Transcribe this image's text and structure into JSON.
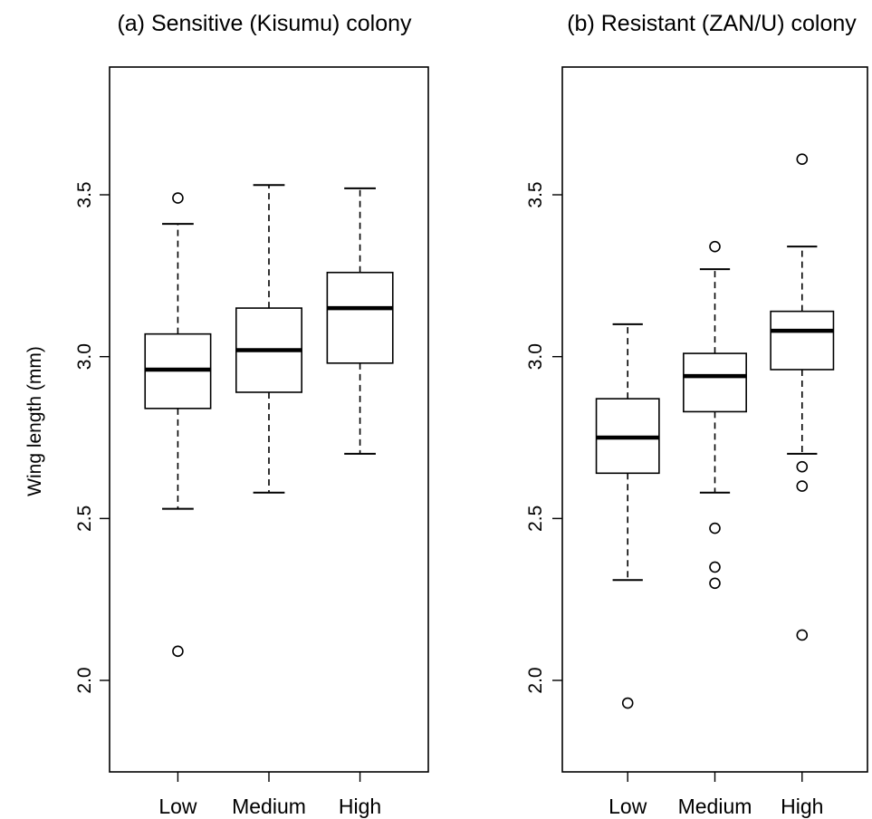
{
  "y_axis_label": "Wing length (mm)",
  "chart_data": [
    {
      "type": "boxplot",
      "title": "(a) Sensitive (Kisumu) colony",
      "ylabel": "Wing length (mm)",
      "xlabel": "",
      "ylim": [
        1.7,
        3.85
      ],
      "yticks": [
        "2.0",
        "2.5",
        "3.0",
        "3.5"
      ],
      "categories": [
        "Low",
        "Medium",
        "High"
      ],
      "boxes": [
        {
          "category": "Low",
          "whisker_low": 2.53,
          "q1": 2.84,
          "median": 2.96,
          "q3": 3.07,
          "whisker_high": 3.41,
          "outliers": [
            3.49,
            2.09
          ]
        },
        {
          "category": "Medium",
          "whisker_low": 2.58,
          "q1": 2.89,
          "median": 3.02,
          "q3": 3.15,
          "whisker_high": 3.53,
          "outliers": []
        },
        {
          "category": "High",
          "whisker_low": 2.7,
          "q1": 2.98,
          "median": 3.15,
          "q3": 3.26,
          "whisker_high": 3.52,
          "outliers": []
        }
      ]
    },
    {
      "type": "boxplot",
      "title": "(b) Resistant (ZAN/U) colony",
      "ylabel": "",
      "xlabel": "",
      "ylim": [
        1.7,
        3.85
      ],
      "yticks": [
        "2.0",
        "2.5",
        "3.0",
        "3.5"
      ],
      "categories": [
        "Low",
        "Medium",
        "High"
      ],
      "boxes": [
        {
          "category": "Low",
          "whisker_low": 2.31,
          "q1": 2.64,
          "median": 2.75,
          "q3": 2.87,
          "whisker_high": 3.1,
          "outliers": [
            1.93
          ]
        },
        {
          "category": "Medium",
          "whisker_low": 2.58,
          "q1": 2.83,
          "median": 2.94,
          "q3": 3.01,
          "whisker_high": 3.27,
          "outliers": [
            3.34,
            2.47,
            2.35,
            2.3
          ]
        },
        {
          "category": "High",
          "whisker_low": 2.7,
          "q1": 2.96,
          "median": 3.08,
          "q3": 3.14,
          "whisker_high": 3.34,
          "outliers": [
            3.61,
            2.66,
            2.6,
            2.14
          ]
        }
      ]
    }
  ]
}
